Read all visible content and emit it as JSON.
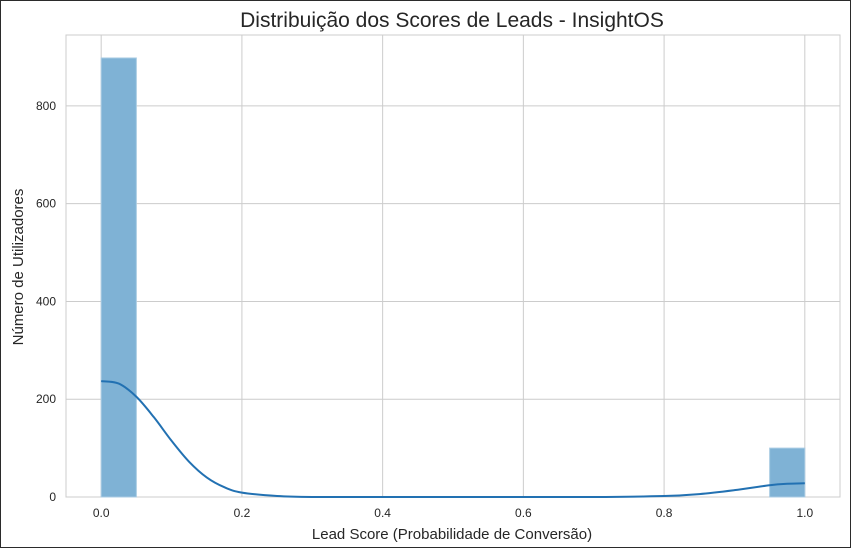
{
  "chart_data": {
    "type": "bar",
    "title": "Distribuição dos Scores de Leads - InsightOS",
    "xlabel": "Lead Score (Probabilidade de Conversão)",
    "ylabel": "Número de Utilizadores",
    "xlim": [
      -0.05,
      1.05
    ],
    "ylim": [
      0,
      945
    ],
    "grid": true,
    "x_ticks": [
      0.0,
      0.2,
      0.4,
      0.6,
      0.8,
      1.0
    ],
    "x_tick_labels": [
      "0.0",
      "0.2",
      "0.4",
      "0.6",
      "0.8",
      "1.0"
    ],
    "y_ticks": [
      0,
      200,
      400,
      600,
      800
    ],
    "y_tick_labels": [
      "0",
      "200",
      "400",
      "600",
      "800"
    ],
    "bins": [
      {
        "x0": 0.0,
        "x1": 0.05,
        "count": 898
      },
      {
        "x0": 0.95,
        "x1": 1.0,
        "count": 100
      }
    ],
    "kde": {
      "x": [
        0.0,
        0.025,
        0.05,
        0.075,
        0.1,
        0.125,
        0.15,
        0.175,
        0.2,
        0.25,
        0.3,
        0.4,
        0.5,
        0.6,
        0.7,
        0.8,
        0.85,
        0.9,
        0.95,
        0.975,
        1.0
      ],
      "y": [
        237,
        232,
        205,
        163,
        115,
        72,
        40,
        20,
        9,
        2,
        0,
        0,
        0,
        0,
        0,
        2,
        6,
        14,
        24,
        27,
        28
      ]
    },
    "colors": {
      "bar_fill": "#7fb2d5",
      "bar_edge": "#a9cbe3",
      "kde_line": "#2271b2",
      "grid": "#cccccc",
      "text": "#262626"
    }
  }
}
